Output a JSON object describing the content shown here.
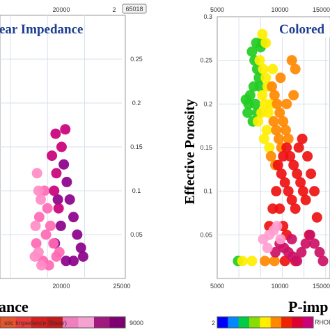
{
  "chart_data": [
    {
      "type": "scatter",
      "title": "ear Impedance",
      "x_top_ticks": [
        "20000",
        "2"
      ],
      "x_bottom_ticks": [
        "20000",
        "25000"
      ],
      "y_ticks": [
        "0.25",
        "0.2",
        "0.15",
        "0.1",
        "0.05"
      ],
      "badge": "65018",
      "xlabel": "ance",
      "colorbar": {
        "label": "stic Impedance Shear)",
        "max_label": "9000",
        "colors": [
          "#e8542a",
          "#ef3a3a",
          "#d81e1e",
          "#c81818",
          "#f07fbf",
          "#f4a3d0",
          "#a01a80",
          "#7e0072"
        ]
      },
      "ylim": [
        0,
        0.3
      ],
      "series": [
        {
          "color": "#8b008b",
          "points": [
            [
              17200,
              0.13
            ],
            [
              17600,
              0.11
            ],
            [
              18000,
              0.09
            ],
            [
              18500,
              0.07
            ],
            [
              19000,
              0.05
            ],
            [
              19500,
              0.035
            ],
            [
              18500,
              0.02
            ],
            [
              17500,
              0.02
            ],
            [
              16800,
              0.06
            ],
            [
              16400,
              0.09
            ],
            [
              16000,
              0.04
            ],
            [
              19800,
              0.025
            ]
          ]
        },
        {
          "color": "#ff69b4",
          "points": [
            [
              14600,
              0.1
            ],
            [
              15000,
              0.08
            ],
            [
              15400,
              0.06
            ],
            [
              15800,
              0.04
            ],
            [
              16200,
              0.025
            ],
            [
              14400,
              0.02
            ],
            [
              15200,
              0.015
            ],
            [
              16600,
              0.03
            ],
            [
              14800,
              0.05
            ],
            [
              13900,
              0.07
            ],
            [
              13500,
              0.04
            ]
          ]
        },
        {
          "color": "#c9007a",
          "points": [
            [
              15600,
              0.14
            ],
            [
              16200,
              0.12
            ],
            [
              15900,
              0.1
            ],
            [
              16500,
              0.08
            ],
            [
              16900,
              0.15
            ],
            [
              17400,
              0.17
            ],
            [
              16100,
              0.165
            ]
          ]
        },
        {
          "color": "#ff8cc6",
          "points": [
            [
              13600,
              0.12
            ],
            [
              13800,
              0.1
            ],
            [
              14100,
              0.09
            ],
            [
              13400,
              0.06
            ],
            [
              13800,
              0.03
            ],
            [
              14200,
              0.015
            ],
            [
              13300,
              0.025
            ]
          ]
        }
      ]
    },
    {
      "type": "scatter",
      "title": "Colored",
      "x_top_ticks": [
        "5000",
        "10000",
        "15000"
      ],
      "x_bottom_ticks": [
        "5000",
        "10000",
        "15000"
      ],
      "y_ticks": [
        "0.3",
        "0.25",
        "0.2",
        "0.15",
        "0.1",
        "0.05"
      ],
      "ylabel": "Effective Porosity",
      "xlabel": "P-imp",
      "colorbar": {
        "min_label": "2",
        "label": "RHOB",
        "colors": [
          "#0000ff",
          "#0088ff",
          "#00cc44",
          "#88dd00",
          "#ffee00",
          "#ff8800",
          "#ee2200",
          "#dd0033",
          "#cc0077"
        ]
      },
      "xlim": [
        5000,
        18000
      ],
      "ylim": [
        0,
        0.3
      ],
      "series": [
        {
          "color": "#22cc22",
          "points": [
            [
              9000,
              0.26
            ],
            [
              9300,
              0.25
            ],
            [
              9600,
              0.24
            ],
            [
              9800,
              0.23
            ],
            [
              9200,
              0.22
            ],
            [
              8800,
              0.21
            ],
            [
              8600,
              0.2
            ],
            [
              8500,
              0.19
            ],
            [
              9500,
              0.27
            ],
            [
              10000,
              0.265
            ],
            [
              9900,
              0.22
            ],
            [
              9400,
              0.2
            ],
            [
              9600,
              0.19
            ],
            [
              9100,
              0.18
            ],
            [
              8300,
              0.205
            ],
            [
              10200,
              0.27
            ],
            [
              7400,
              0.02
            ]
          ]
        },
        {
          "color": "#ffee00",
          "points": [
            [
              9900,
              0.25
            ],
            [
              10300,
              0.24
            ],
            [
              10600,
              0.23
            ],
            [
              10800,
              0.22
            ],
            [
              10200,
              0.21
            ],
            [
              10500,
              0.2
            ],
            [
              10100,
              0.19
            ],
            [
              9700,
              0.18
            ],
            [
              10900,
              0.19
            ],
            [
              11200,
              0.2
            ],
            [
              10700,
              0.17
            ],
            [
              10400,
              0.16
            ],
            [
              11000,
              0.15
            ],
            [
              10200,
              0.28
            ],
            [
              10600,
              0.27
            ],
            [
              7900,
              0.02
            ],
            [
              9000,
              0.02
            ],
            [
              11400,
              0.24
            ]
          ]
        },
        {
          "color": "#ff8800",
          "points": [
            [
              11300,
              0.22
            ],
            [
              11600,
              0.21
            ],
            [
              11900,
              0.2
            ],
            [
              12200,
              0.19
            ],
            [
              11500,
              0.18
            ],
            [
              11800,
              0.17
            ],
            [
              12100,
              0.16
            ],
            [
              12400,
              0.15
            ],
            [
              11200,
              0.14
            ],
            [
              11700,
              0.13
            ],
            [
              12600,
              0.18
            ],
            [
              12900,
              0.17
            ],
            [
              13200,
              0.16
            ],
            [
              13000,
              0.2
            ],
            [
              12300,
              0.23
            ],
            [
              13600,
              0.25
            ],
            [
              14000,
              0.24
            ],
            [
              13800,
              0.21
            ],
            [
              11600,
              0.02
            ],
            [
              10500,
              0.02
            ]
          ]
        },
        {
          "color": "#ee1111",
          "points": [
            [
              12000,
              0.13
            ],
            [
              12400,
              0.12
            ],
            [
              12800,
              0.11
            ],
            [
              13200,
              0.1
            ],
            [
              13600,
              0.09
            ],
            [
              14000,
              0.08
            ],
            [
              12600,
              0.14
            ],
            [
              13000,
              0.15
            ],
            [
              13400,
              0.14
            ],
            [
              13800,
              0.13
            ],
            [
              14200,
              0.12
            ],
            [
              14600,
              0.11
            ],
            [
              14900,
              0.1
            ],
            [
              15200,
              0.09
            ],
            [
              11800,
              0.1
            ],
            [
              12200,
              0.08
            ],
            [
              12600,
              0.06
            ],
            [
              13000,
              0.05
            ],
            [
              14400,
              0.15
            ],
            [
              14800,
              0.16
            ],
            [
              15400,
              0.14
            ],
            [
              15800,
              0.12
            ],
            [
              16200,
              0.1
            ],
            [
              11400,
              0.08
            ],
            [
              11000,
              0.06
            ],
            [
              12800,
              0.02
            ],
            [
              14000,
              0.02
            ],
            [
              16500,
              0.07
            ],
            [
              15600,
              0.05
            ]
          ]
        },
        {
          "color": "#cc1166",
          "points": [
            [
              12200,
              0.04
            ],
            [
              12700,
              0.035
            ],
            [
              13200,
              0.03
            ],
            [
              13700,
              0.025
            ],
            [
              14200,
              0.02
            ],
            [
              14700,
              0.03
            ],
            [
              15200,
              0.04
            ],
            [
              15700,
              0.05
            ],
            [
              16200,
              0.04
            ],
            [
              11700,
              0.03
            ],
            [
              16800,
              0.03
            ],
            [
              17200,
              0.02
            ],
            [
              13600,
              0.045
            ]
          ]
        },
        {
          "color": "#ff9ed0",
          "points": [
            [
              11000,
              0.05
            ],
            [
              11500,
              0.055
            ],
            [
              11900,
              0.06
            ],
            [
              12300,
              0.045
            ],
            [
              10800,
              0.035
            ],
            [
              10300,
              0.045
            ]
          ]
        }
      ]
    }
  ]
}
